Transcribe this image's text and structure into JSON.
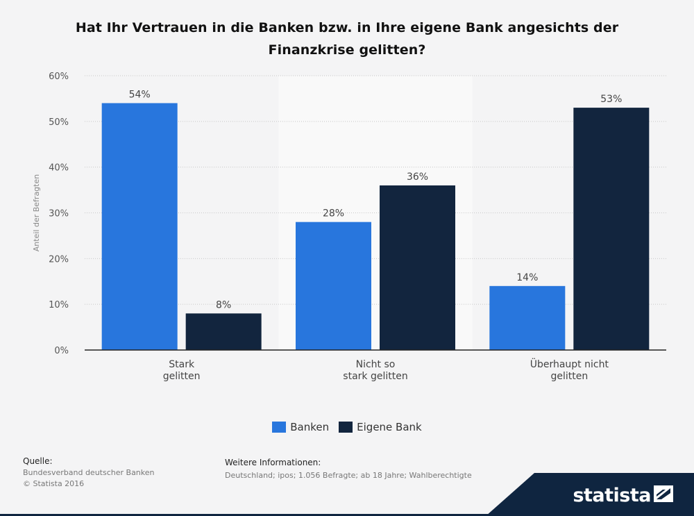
{
  "title": "Hat Ihr Vertrauen in die Banken bzw. in Ihre eigene Bank angesichts der Finanzkrise gelitten?",
  "title_lines": [
    "Hat Ihr Vertrauen in die Banken bzw. in Ihre eigene Bank angesichts der",
    "Finanzkrise gelitten?"
  ],
  "chart_data": {
    "type": "bar",
    "categories": [
      [
        "Stark",
        "gelitten"
      ],
      [
        "Nicht so",
        "stark gelitten"
      ],
      [
        "Überhaupt nicht",
        "gelitten"
      ]
    ],
    "series": [
      {
        "name": "Banken",
        "values": [
          54,
          28,
          14
        ],
        "labels": [
          "54%",
          "28%",
          "14%"
        ],
        "color": "#2876dd"
      },
      {
        "name": "Eigene Bank",
        "values": [
          8,
          36,
          53
        ],
        "labels": [
          "8%",
          "36%",
          "53%"
        ],
        "color": "#12253e"
      }
    ],
    "ylabel": "Anteil der Befragten",
    "ylim": [
      0,
      60
    ],
    "yticks": [
      0,
      10,
      20,
      30,
      40,
      50,
      60
    ],
    "ytick_labels": [
      "0%",
      "10%",
      "20%",
      "30%",
      "40%",
      "50%",
      "60%"
    ],
    "grid": true,
    "legend_position": "bottom-center"
  },
  "footer": {
    "source_label": "Quelle:",
    "source_lines": [
      "Bundesverband deutscher Banken",
      "© Statista 2016"
    ],
    "info_label": "Weitere Informationen:",
    "info_text": "Deutschland; ipos; 1.056 Befragte; ab 18 Jahre; Wahlberechtigte"
  },
  "brand": {
    "name": "statista",
    "color": "#0f2540"
  }
}
